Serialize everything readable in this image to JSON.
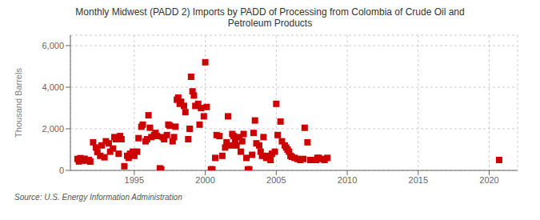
{
  "chart_data": {
    "type": "scatter",
    "title": "Monthly Midwest (PADD 2) Imports by PADD of Processing from Colombia of Crude Oil and\nPetroleum Products",
    "ylabel": "Thousand Barrels",
    "annotations": [
      "Source: U.S. Energy Information Administration"
    ],
    "color": "#cc0000",
    "marker": "square",
    "grid": true,
    "xlim": [
      1990.5,
      2022
    ],
    "xticks": [
      1995,
      2000,
      2005,
      2010,
      2015,
      2020
    ],
    "ylim": [
      0,
      6500
    ],
    "yticks": [
      0,
      {
        "value": 2000,
        "label": "2,000"
      },
      {
        "value": 4000,
        "label": "4,000"
      },
      {
        "value": 6000,
        "label": "6,000"
      }
    ],
    "x": [
      1991.0,
      1991.1,
      1991.2,
      1991.3,
      1991.5,
      1991.6,
      1991.8,
      1991.9,
      1992.1,
      1992.3,
      1992.4,
      1992.6,
      1992.7,
      1992.9,
      1993.0,
      1993.2,
      1993.3,
      1993.5,
      1993.6,
      1993.7,
      1993.9,
      1994.0,
      1994.1,
      1994.3,
      1994.5,
      1994.6,
      1994.7,
      1994.9,
      1995.0,
      1995.2,
      1995.3,
      1995.5,
      1995.6,
      1995.8,
      1995.9,
      1996.0,
      1996.1,
      1996.2,
      1996.4,
      1996.5,
      1996.6,
      1996.8,
      1996.9,
      1997.0,
      1997.1,
      1997.3,
      1997.4,
      1997.5,
      1997.7,
      1997.8,
      1997.9,
      1998.0,
      1998.1,
      1998.2,
      1998.3,
      1998.5,
      1998.6,
      1998.8,
      1998.9,
      1999.0,
      1999.1,
      1999.2,
      1999.3,
      1999.5,
      1999.6,
      1999.7,
      1999.9,
      2000.0,
      2000.1,
      2000.4,
      2000.5,
      2000.7,
      2000.8,
      2001.0,
      2001.2,
      2001.4,
      2001.5,
      2001.6,
      2001.8,
      2001.9,
      2002.0,
      2002.1,
      2002.2,
      2002.4,
      2002.5,
      2002.6,
      2002.7,
      2002.9,
      2003.0,
      2003.1,
      2003.3,
      2003.4,
      2003.5,
      2003.6,
      2003.8,
      2003.9,
      2004.0,
      2004.1,
      2004.3,
      2004.4,
      2004.5,
      2004.6,
      2004.7,
      2004.9,
      2005.0,
      2005.1,
      2005.3,
      2005.4,
      2005.6,
      2005.7,
      2005.8,
      2005.9,
      2006.0,
      2006.1,
      2006.3,
      2006.5,
      2006.7,
      2006.9,
      2007.0,
      2007.2,
      2007.4,
      2007.6,
      2007.8,
      2007.9,
      2008.0,
      2008.2,
      2008.4,
      2008.6,
      2020.7
    ],
    "values": [
      550,
      430,
      590,
      480,
      560,
      470,
      500,
      420,
      1350,
      1100,
      880,
      700,
      1200,
      630,
      1400,
      1300,
      900,
      1050,
      1600,
      1500,
      800,
      1650,
      1500,
      200,
      700,
      600,
      800,
      900,
      700,
      900,
      1550,
      2100,
      2200,
      1400,
      1500,
      2650,
      2050,
      1600,
      1700,
      1800,
      1650,
      100,
      50,
      1600,
      1500,
      1700,
      2200,
      2150,
      1400,
      1600,
      2100,
      3400,
      3500,
      3200,
      3300,
      3100,
      2800,
      1500,
      2000,
      4500,
      3800,
      3600,
      3100,
      3200,
      2200,
      3000,
      2600,
      5200,
      3050,
      50,
      50,
      600,
      1700,
      1650,
      700,
      1100,
      1350,
      2600,
      1200,
      1750,
      1650,
      1500,
      1200,
      1600,
      900,
      1400,
      1750,
      600,
      50,
      50,
      750,
      1800,
      2400,
      1300,
      1200,
      900,
      700,
      1600,
      600,
      700,
      600,
      500,
      800,
      900,
      3200,
      1700,
      2350,
      1400,
      1200,
      1100,
      1000,
      900,
      700,
      650,
      600,
      550,
      500,
      550,
      2050,
      1350,
      500,
      500,
      500,
      600,
      600,
      550,
      500,
      600,
      500
    ]
  }
}
